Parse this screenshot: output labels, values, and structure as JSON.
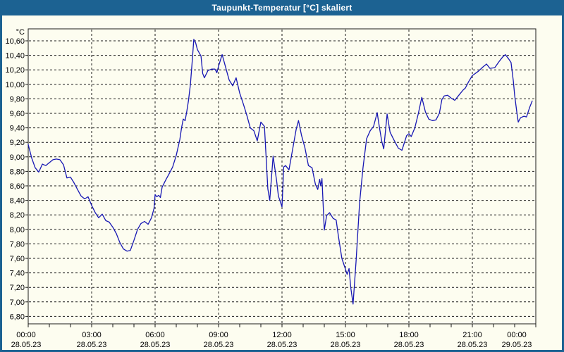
{
  "window": {
    "title": "Taupunkt-Temperatur [°C] skaliert"
  },
  "colors": {
    "titlebar_bg": "#1c6292",
    "titlebar_text": "#ffffff",
    "window_border": "#1c6292",
    "background": "#fdfdf0",
    "grid": "#1a1a1a",
    "axis": "#1a1a1a",
    "tick_label": "#000000",
    "series_line": "#1717b3"
  },
  "chart_data": {
    "type": "line",
    "title": "Taupunkt-Temperatur [°C] skaliert",
    "xlabel": "",
    "ylabel": "°C",
    "y_unit_label": "°C",
    "ylim": [
      6.74,
      10.64
    ],
    "ytick_step": 0.2,
    "grid": true,
    "legend": "none",
    "yticks": [
      {
        "v": 10.6,
        "label": "10,60"
      },
      {
        "v": 10.4,
        "label": "10,40"
      },
      {
        "v": 10.2,
        "label": "10,20"
      },
      {
        "v": 10.0,
        "label": "10,00"
      },
      {
        "v": 9.8,
        "label": "9,80"
      },
      {
        "v": 9.6,
        "label": "9,60"
      },
      {
        "v": 9.4,
        "label": "9,40"
      },
      {
        "v": 9.2,
        "label": "9,20"
      },
      {
        "v": 9.0,
        "label": "9,00"
      },
      {
        "v": 8.8,
        "label": "8,80"
      },
      {
        "v": 8.6,
        "label": "8,60"
      },
      {
        "v": 8.4,
        "label": "8,40"
      },
      {
        "v": 8.2,
        "label": "8,20"
      },
      {
        "v": 8.0,
        "label": "8,00"
      },
      {
        "v": 7.8,
        "label": "7,80"
      },
      {
        "v": 7.6,
        "label": "7,60"
      },
      {
        "v": 7.4,
        "label": "7,40"
      },
      {
        "v": 7.2,
        "label": "7,20"
      },
      {
        "v": 7.0,
        "label": "7,00"
      },
      {
        "v": 6.8,
        "label": "6,80"
      }
    ],
    "x_range_hours": [
      0,
      24
    ],
    "x_minor_tick_hours": 1,
    "xticks": [
      {
        "hour": 0,
        "time": "00:00",
        "date": "28.05.23"
      },
      {
        "hour": 3,
        "time": "03:00",
        "date": "28.05.23"
      },
      {
        "hour": 6,
        "time": "06:00",
        "date": "28.05.23"
      },
      {
        "hour": 9,
        "time": "09:00",
        "date": "28.05.23"
      },
      {
        "hour": 12,
        "time": "12:00",
        "date": "28.05.23"
      },
      {
        "hour": 15,
        "time": "15:00",
        "date": "28.05.23"
      },
      {
        "hour": 18,
        "time": "18:00",
        "date": "28.05.23"
      },
      {
        "hour": 21,
        "time": "21:00",
        "date": "28.05.23"
      },
      {
        "hour": 24,
        "time": "00:00",
        "date": "29.05.23"
      }
    ],
    "series": [
      {
        "name": "Taupunkt-Temperatur",
        "color": "#1717b3",
        "points": [
          [
            0,
            9.17
          ],
          [
            0.17,
            8.98
          ],
          [
            0.33,
            8.85
          ],
          [
            0.5,
            8.79
          ],
          [
            0.67,
            8.9
          ],
          [
            0.83,
            8.88
          ],
          [
            1,
            8.92
          ],
          [
            1.17,
            8.96
          ],
          [
            1.33,
            8.97
          ],
          [
            1.5,
            8.96
          ],
          [
            1.67,
            8.89
          ],
          [
            1.83,
            8.71
          ],
          [
            2,
            8.72
          ],
          [
            2.17,
            8.64
          ],
          [
            2.33,
            8.55
          ],
          [
            2.5,
            8.46
          ],
          [
            2.67,
            8.42
          ],
          [
            2.83,
            8.45
          ],
          [
            3,
            8.33
          ],
          [
            3.17,
            8.23
          ],
          [
            3.33,
            8.16
          ],
          [
            3.5,
            8.21
          ],
          [
            3.67,
            8.12
          ],
          [
            3.83,
            8.1
          ],
          [
            4,
            8.03
          ],
          [
            4.17,
            7.94
          ],
          [
            4.33,
            7.82
          ],
          [
            4.5,
            7.73
          ],
          [
            4.67,
            7.7
          ],
          [
            4.83,
            7.71
          ],
          [
            5,
            7.85
          ],
          [
            5.17,
            8
          ],
          [
            5.33,
            8.08
          ],
          [
            5.5,
            8.11
          ],
          [
            5.67,
            8.07
          ],
          [
            5.83,
            8.16
          ],
          [
            5.95,
            8.29
          ],
          [
            6,
            8.48
          ],
          [
            6.08,
            8.45
          ],
          [
            6.17,
            8.47
          ],
          [
            6.25,
            8.44
          ],
          [
            6.33,
            8.58
          ],
          [
            6.5,
            8.68
          ],
          [
            6.67,
            8.77
          ],
          [
            6.83,
            8.86
          ],
          [
            7,
            9.02
          ],
          [
            7.17,
            9.24
          ],
          [
            7.25,
            9.4
          ],
          [
            7.33,
            9.52
          ],
          [
            7.42,
            9.5
          ],
          [
            7.5,
            9.63
          ],
          [
            7.58,
            9.78
          ],
          [
            7.67,
            10
          ],
          [
            7.75,
            10.3
          ],
          [
            7.83,
            10.62
          ],
          [
            7.92,
            10.57
          ],
          [
            8,
            10.48
          ],
          [
            8.17,
            10.39
          ],
          [
            8.25,
            10.15
          ],
          [
            8.33,
            10.09
          ],
          [
            8.5,
            10.19
          ],
          [
            8.67,
            10.21
          ],
          [
            8.83,
            10.21
          ],
          [
            8.92,
            10.16
          ],
          [
            9,
            10.25
          ],
          [
            9.17,
            10.41
          ],
          [
            9.33,
            10.24
          ],
          [
            9.5,
            10.06
          ],
          [
            9.67,
            9.98
          ],
          [
            9.83,
            10.09
          ],
          [
            10,
            9.88
          ],
          [
            10.17,
            9.73
          ],
          [
            10.33,
            9.58
          ],
          [
            10.5,
            9.4
          ],
          [
            10.67,
            9.36
          ],
          [
            10.83,
            9.22
          ],
          [
            11,
            9.48
          ],
          [
            11.17,
            9.42
          ],
          [
            11.33,
            8.56
          ],
          [
            11.42,
            8.4
          ],
          [
            11.58,
            9.01
          ],
          [
            11.75,
            8.66
          ],
          [
            11.83,
            8.46
          ],
          [
            12,
            8.31
          ],
          [
            12.08,
            8.86
          ],
          [
            12.17,
            8.88
          ],
          [
            12.33,
            8.82
          ],
          [
            12.5,
            9.1
          ],
          [
            12.67,
            9.38
          ],
          [
            12.78,
            9.5
          ],
          [
            12.92,
            9.3
          ],
          [
            13.08,
            9.13
          ],
          [
            13.25,
            8.88
          ],
          [
            13.42,
            8.85
          ],
          [
            13.58,
            8.62
          ],
          [
            13.69,
            8.55
          ],
          [
            13.78,
            8.69
          ],
          [
            13.83,
            8.6
          ],
          [
            13.89,
            8.7
          ],
          [
            14,
            7.99
          ],
          [
            14.11,
            8.19
          ],
          [
            14.25,
            8.23
          ],
          [
            14.42,
            8.15
          ],
          [
            14.56,
            8.13
          ],
          [
            14.67,
            7.9
          ],
          [
            14.83,
            7.6
          ],
          [
            15,
            7.45
          ],
          [
            15.08,
            7.38
          ],
          [
            15.17,
            7.46
          ],
          [
            15.25,
            7.2
          ],
          [
            15.36,
            6.97
          ],
          [
            15.5,
            7.55
          ],
          [
            15.67,
            8.37
          ],
          [
            15.83,
            8.85
          ],
          [
            16,
            9.25
          ],
          [
            16.17,
            9.36
          ],
          [
            16.33,
            9.42
          ],
          [
            16.5,
            9.61
          ],
          [
            16.61,
            9.4
          ],
          [
            16.72,
            9.21
          ],
          [
            16.81,
            9.11
          ],
          [
            16.97,
            9.59
          ],
          [
            17.11,
            9.34
          ],
          [
            17.28,
            9.24
          ],
          [
            17.5,
            9.12
          ],
          [
            17.67,
            9.09
          ],
          [
            17.89,
            9.29
          ],
          [
            18,
            9.32
          ],
          [
            18.11,
            9.28
          ],
          [
            18.28,
            9.4
          ],
          [
            18.44,
            9.59
          ],
          [
            18.61,
            9.82
          ],
          [
            18.78,
            9.62
          ],
          [
            18.94,
            9.52
          ],
          [
            19.11,
            9.5
          ],
          [
            19.28,
            9.51
          ],
          [
            19.44,
            9.6
          ],
          [
            19.56,
            9.79
          ],
          [
            19.67,
            9.84
          ],
          [
            19.83,
            9.85
          ],
          [
            20,
            9.81
          ],
          [
            20.17,
            9.78
          ],
          [
            20.39,
            9.86
          ],
          [
            20.56,
            9.92
          ],
          [
            20.67,
            9.95
          ],
          [
            20.83,
            10.04
          ],
          [
            21,
            10.12
          ],
          [
            21.28,
            10.18
          ],
          [
            21.5,
            10.24
          ],
          [
            21.67,
            10.28
          ],
          [
            21.83,
            10.22
          ],
          [
            22.06,
            10.23
          ],
          [
            22.28,
            10.32
          ],
          [
            22.44,
            10.38
          ],
          [
            22.56,
            10.41
          ],
          [
            22.72,
            10.35
          ],
          [
            22.83,
            10.3
          ],
          [
            22.94,
            10.04
          ],
          [
            23,
            9.85
          ],
          [
            23.11,
            9.6
          ],
          [
            23.17,
            9.48
          ],
          [
            23.28,
            9.54
          ],
          [
            23.44,
            9.56
          ],
          [
            23.56,
            9.55
          ],
          [
            23.72,
            9.69
          ],
          [
            23.83,
            9.77
          ]
        ]
      }
    ]
  }
}
